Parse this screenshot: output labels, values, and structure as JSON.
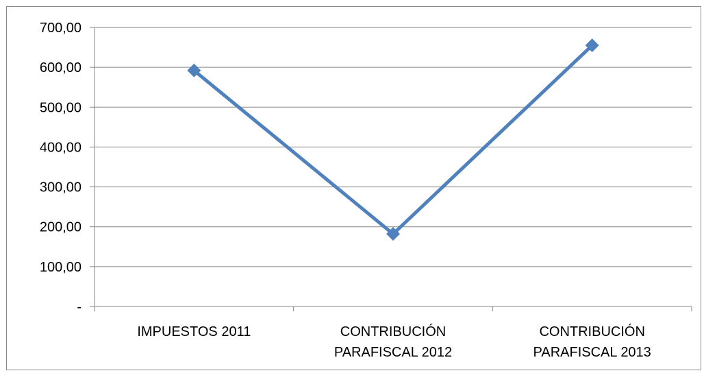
{
  "chart_data": {
    "type": "line",
    "categories": [
      [
        "IMPUESTOS 2011"
      ],
      [
        "CONTRIBUCIÓN",
        "PARAFISCAL 2012"
      ],
      [
        "CONTRIBUCIÓN",
        "PARAFISCAL 2013"
      ]
    ],
    "series": [
      {
        "values": [
          592,
          182,
          655
        ],
        "color": "#4f81bd",
        "marker": "diamond"
      }
    ],
    "ylim": [
      0,
      700
    ],
    "yticks": [
      0,
      100,
      200,
      300,
      400,
      500,
      600,
      700
    ],
    "ytick_labels": [
      "-",
      "100,00",
      "200,00",
      "300,00",
      "400,00",
      "500,00",
      "600,00",
      "700,00"
    ],
    "grid": true,
    "legend": "none"
  },
  "colors": {
    "line": "#4f81bd",
    "grid": "#868686",
    "axis": "#868686"
  }
}
